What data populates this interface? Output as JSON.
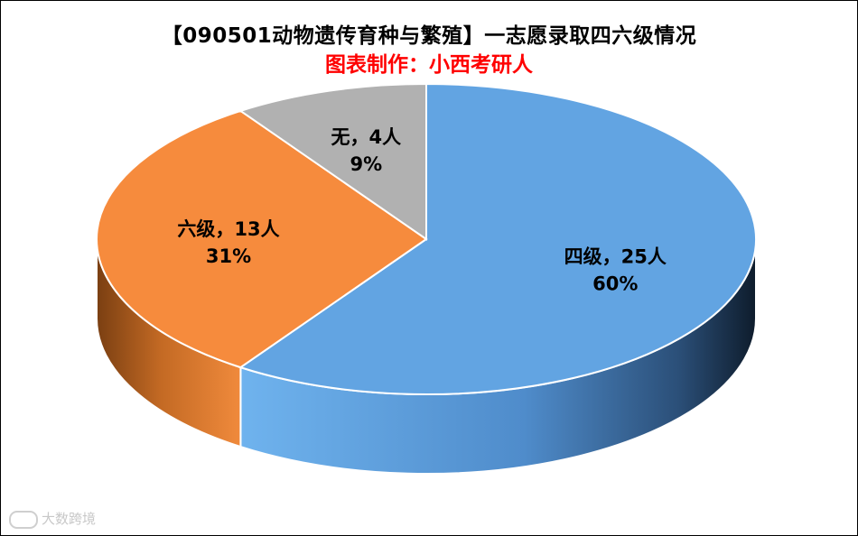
{
  "chart_data": {
    "type": "pie",
    "title": "【090501动物遗传育种与繁殖】一志愿录取四六级情况",
    "subtitle": "图表制作：小西考研人",
    "slices": [
      {
        "name": "四级",
        "count": 25,
        "percent": "60%",
        "label": "四级，25人",
        "color": "#62a4e2"
      },
      {
        "name": "六级",
        "count": 13,
        "percent": "31%",
        "label": "六级，13人",
        "color": "#f68b3d"
      },
      {
        "name": "无",
        "count": 4,
        "percent": "9%",
        "label": "无，4人",
        "color": "#b1b1b1"
      }
    ]
  },
  "watermark": "大数跨境"
}
